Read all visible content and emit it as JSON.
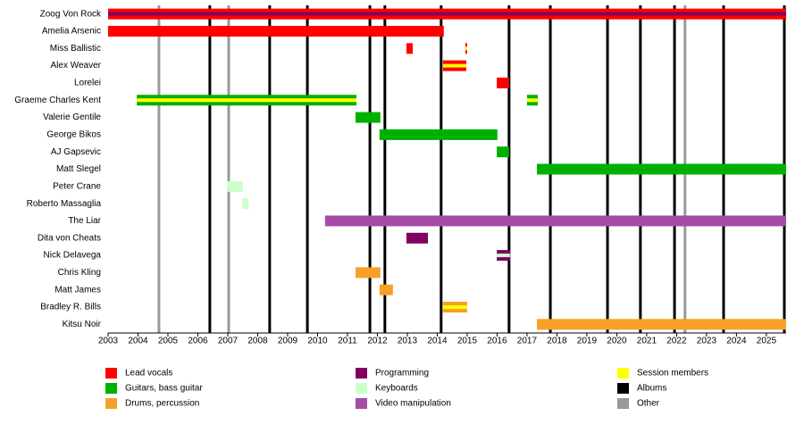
{
  "chart_data": {
    "type": "timeline",
    "xlim": [
      2003,
      2025.66
    ],
    "xticks": [
      2003,
      2004,
      2005,
      2006,
      2007,
      2008,
      2009,
      2010,
      2011,
      2012,
      2013,
      2014,
      2015,
      2016,
      2017,
      2018,
      2019,
      2020,
      2021,
      2022,
      2023,
      2024,
      2025
    ],
    "legend": [
      {
        "name": "Lead vocals",
        "color": "#ff0000"
      },
      {
        "name": "Guitars, bass guitar",
        "color": "#00b000"
      },
      {
        "name": "Drums, percussion",
        "color": "#f7a028"
      },
      {
        "name": "Programming",
        "color": "#800060"
      },
      {
        "name": "Keyboards",
        "color": "#ccffcc"
      },
      {
        "name": "Video manipulation",
        "color": "#a64ca6"
      },
      {
        "name": "Session members",
        "color": "#ffff00"
      },
      {
        "name": "Albums",
        "color": "#000000"
      },
      {
        "name": "Other",
        "color": "#999999"
      }
    ],
    "lines": [
      {
        "legend": 7,
        "years": [
          2006.4,
          2008.4,
          2009.66,
          2011.75,
          2012.25,
          2014.13,
          2016.4,
          2017.78,
          2019.69,
          2020.79,
          2021.93,
          2023.57,
          2025.6
        ]
      },
      {
        "legend": 8,
        "years": [
          2004.7,
          2007.03,
          2022.28
        ]
      }
    ],
    "members": [
      {
        "name": "Zoog Von Rock",
        "bars": [
          {
            "role": 0,
            "stripe": 3,
            "start": 2003,
            "end": 2025.66
          }
        ]
      },
      {
        "name": "Amelia Arsenic",
        "bars": [
          {
            "role": 0,
            "start": 2003,
            "end": 2014.22
          }
        ]
      },
      {
        "name": "Miss Ballistic",
        "bars": [
          {
            "role": 0,
            "start": 2012.97,
            "end": 2013.18
          },
          {
            "role": 0,
            "stripe": 6,
            "start": 2014.94,
            "end": 2015.0
          }
        ]
      },
      {
        "name": "Alex Weaver",
        "bars": [
          {
            "role": 0,
            "stripe": 6,
            "start": 2014.19,
            "end": 2014.97
          }
        ]
      },
      {
        "name": "Lorelei",
        "bars": [
          {
            "role": 0,
            "start": 2015.99,
            "end": 2016.4
          }
        ]
      },
      {
        "name": "Graeme Charles Kent",
        "bars": [
          {
            "role": 1,
            "stripe": 6,
            "start": 2003.96,
            "end": 2011.3
          },
          {
            "role": 1,
            "stripe": 6,
            "start": 2017.0,
            "end": 2017.36
          }
        ]
      },
      {
        "name": "Valerie Gentile",
        "bars": [
          {
            "role": 1,
            "start": 2011.27,
            "end": 2012.1
          }
        ]
      },
      {
        "name": "George Bikos",
        "bars": [
          {
            "role": 1,
            "start": 2012.07,
            "end": 2016.01
          }
        ]
      },
      {
        "name": "AJ Gapsevic",
        "bars": [
          {
            "role": 1,
            "start": 2015.99,
            "end": 2016.4
          }
        ]
      },
      {
        "name": "Matt Slegel",
        "bars": [
          {
            "role": 1,
            "start": 2017.33,
            "end": 2025.66
          }
        ]
      },
      {
        "name": "Peter Crane",
        "bars": [
          {
            "role": 4,
            "start": 2006.97,
            "end": 2007.5
          }
        ]
      },
      {
        "name": "Roberto Massaglia",
        "bars": [
          {
            "role": 4,
            "start": 2007.48,
            "end": 2007.69
          }
        ]
      },
      {
        "name": "The Liar",
        "bars": [
          {
            "role": 5,
            "start": 2010.25,
            "end": 2025.66
          }
        ]
      },
      {
        "name": "Dita von Cheats",
        "bars": [
          {
            "role": 3,
            "start": 2012.97,
            "end": 2013.69
          }
        ]
      },
      {
        "name": "Nick Delavega",
        "bars": [
          {
            "role": 3,
            "stripe": 4,
            "start": 2015.99,
            "end": 2016.43
          }
        ]
      },
      {
        "name": "Chris Kling",
        "bars": [
          {
            "role": 2,
            "start": 2011.27,
            "end": 2012.1
          }
        ]
      },
      {
        "name": "Matt James",
        "bars": [
          {
            "role": 2,
            "start": 2012.07,
            "end": 2012.52
          }
        ]
      },
      {
        "name": "Bradley R. Bills",
        "bars": [
          {
            "role": 2,
            "stripe": 6,
            "start": 2014.19,
            "end": 2015.0
          }
        ]
      },
      {
        "name": "Kitsu Noir",
        "bars": [
          {
            "role": 2,
            "start": 2017.33,
            "end": 2025.66
          }
        ]
      }
    ]
  }
}
